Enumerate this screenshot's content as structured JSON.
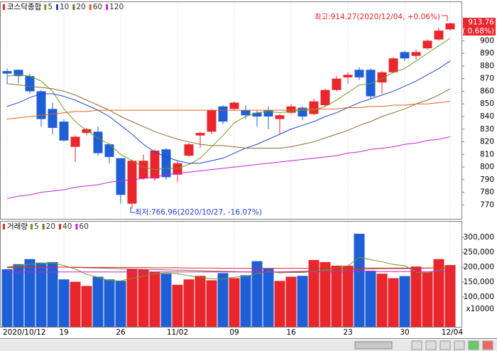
{
  "chart_data": [
    {
      "type": "candlestick",
      "title": "코스닥종합",
      "categories": [
        "2020/10/12",
        null,
        null,
        null,
        null,
        "19",
        null,
        null,
        null,
        null,
        "26",
        null,
        null,
        null,
        null,
        "11/02",
        null,
        null,
        null,
        null,
        "09",
        null,
        null,
        null,
        null,
        "16",
        null,
        null,
        null,
        null,
        "23",
        null,
        null,
        null,
        null,
        "30",
        null,
        null,
        null,
        "12/04"
      ],
      "open": [
        876,
        877,
        872,
        860,
        846,
        836,
        816,
        827,
        828,
        818,
        807,
        771,
        791,
        791,
        814,
        794,
        809,
        825,
        828,
        848,
        846,
        845,
        843,
        845,
        838,
        843,
        847,
        842,
        849,
        861,
        871,
        877,
        877,
        867,
        875,
        891,
        888,
        894,
        901,
        909
      ],
      "high": [
        878,
        877,
        874,
        861,
        851,
        838,
        825,
        831,
        832,
        819,
        807,
        806,
        810,
        814,
        815,
        805,
        819,
        828,
        846,
        849,
        852,
        849,
        845,
        848,
        842,
        850,
        848,
        854,
        862,
        872,
        875,
        879,
        878,
        876,
        887,
        892,
        893,
        901,
        910,
        914.27
      ],
      "low": [
        866,
        866,
        858,
        832,
        826,
        820,
        804,
        825,
        809,
        803,
        771,
        766.96,
        790,
        789,
        790,
        788,
        808,
        815,
        826,
        834,
        845,
        838,
        832,
        830,
        826,
        842,
        837,
        841,
        848,
        860,
        866,
        869,
        854,
        858,
        874,
        884,
        885,
        893,
        900,
        908
      ],
      "close": [
        874,
        872,
        860,
        838,
        831,
        821,
        824,
        830,
        811,
        808,
        778,
        805,
        805,
        813,
        792,
        803,
        818,
        827,
        845,
        836,
        851,
        841,
        840,
        840,
        841,
        848,
        840,
        852,
        861,
        870,
        873,
        871,
        856,
        875,
        886,
        886,
        891,
        900,
        908,
        913.76
      ],
      "up_color": "#e8262c",
      "down_color": "#1f5fd6",
      "series": [
        {
          "name": "5",
          "color": "#6e9c1f",
          "values": [
            872,
            873,
            872,
            868,
            860,
            846,
            836,
            829,
            823,
            818,
            810,
            805,
            800,
            798,
            799,
            799,
            802,
            807,
            816,
            825,
            835,
            840,
            843,
            844,
            843,
            844,
            845,
            845,
            848,
            853,
            859,
            865,
            866,
            870,
            875,
            878,
            884,
            890,
            896,
            902
          ]
        },
        {
          "name": "10",
          "color": "#1f44d6",
          "values": [
            848,
            851,
            855,
            858,
            858,
            856,
            853,
            849,
            845,
            840,
            833,
            826,
            818,
            812,
            808,
            805,
            803,
            803,
            805,
            807,
            811,
            815,
            818,
            822,
            826,
            830,
            833,
            836,
            840,
            843,
            847,
            851,
            854,
            857,
            860,
            864,
            868,
            873,
            878,
            884
          ]
        },
        {
          "name": "20",
          "color": "#8b6a2a",
          "values": [
            866,
            865,
            864,
            863,
            862,
            860,
            857,
            853,
            849,
            845,
            840,
            836,
            832,
            828,
            825,
            822,
            820,
            818,
            817,
            817,
            816,
            815,
            815,
            815,
            815,
            816,
            818,
            820,
            823,
            826,
            829,
            833,
            836,
            840,
            843,
            846,
            850,
            853,
            857,
            862
          ]
        },
        {
          "name": "60",
          "color": "#e5601c",
          "values": [
            838,
            839,
            840,
            841,
            842,
            843,
            844,
            844,
            845,
            845,
            845,
            845,
            845,
            845,
            845,
            845,
            845,
            845,
            845,
            845,
            845,
            845,
            845,
            845,
            845,
            845,
            846,
            846,
            846,
            846,
            847,
            847,
            848,
            848,
            849,
            849,
            850,
            850,
            851,
            852
          ]
        },
        {
          "name": "120",
          "color": "#c81fd6",
          "values": [
            775,
            777,
            778,
            780,
            781,
            782,
            784,
            785,
            786,
            788,
            789,
            790,
            791,
            792,
            794,
            795,
            796,
            797,
            798,
            799,
            800,
            801,
            802,
            803,
            804,
            805,
            806,
            807,
            808,
            809,
            811,
            812,
            814,
            815,
            816,
            818,
            819,
            821,
            822,
            824
          ]
        }
      ],
      "ylim": [
        759,
        930
      ],
      "yticks": [
        770,
        780,
        790,
        800,
        810,
        820,
        830,
        840,
        850,
        860,
        870,
        880,
        890,
        900
      ],
      "max_label": "최고:914.27(2020/12/04, +0.06%)",
      "min_label": "최저:766.96(2020/10/27, -16.07%)",
      "last_price_label": "913.76",
      "change_label": "( 0.68%)",
      "grid": true
    },
    {
      "type": "bar",
      "title": "거래량",
      "values": [
        193000,
        210000,
        227000,
        215000,
        217000,
        159000,
        151000,
        137000,
        168000,
        159000,
        154000,
        195000,
        193000,
        185000,
        178000,
        141000,
        159000,
        171000,
        156000,
        180000,
        163000,
        173000,
        220000,
        195000,
        154000,
        168000,
        171000,
        224000,
        217000,
        205000,
        205000,
        312000,
        188000,
        178000,
        163000,
        170000,
        202000,
        183000,
        227000,
        207000
      ],
      "series": [
        {
          "name": "5",
          "color": "#6e9c1f",
          "values": [
            200000,
            205000,
            210000,
            212000,
            214000,
            205000,
            194000,
            176000,
            166000,
            155000,
            154000,
            163000,
            170000,
            177000,
            181000,
            178000,
            171000,
            167000,
            161000,
            161000,
            166000,
            169000,
            178000,
            186000,
            181000,
            182000,
            182000,
            186000,
            191000,
            197000,
            204000,
            233000,
            225000,
            218000,
            209000,
            205000,
            183000,
            181000,
            190000,
            200000
          ]
        },
        {
          "name": "20",
          "color": "#8b6a2a",
          "values": [
            198000,
            198000,
            199000,
            199000,
            200000,
            200000,
            199000,
            198000,
            197000,
            196000,
            195000,
            194000,
            193000,
            192000,
            191000,
            190000,
            189000,
            188000,
            187000,
            186000,
            185000,
            184000,
            184000,
            184000,
            184000,
            185000,
            186000,
            187000,
            188000,
            189000,
            190000,
            193000,
            194000,
            195000,
            195000,
            195000,
            196000,
            197000,
            198000,
            199000
          ]
        },
        {
          "name": "40",
          "color": "#e8262c",
          "values": [
            200000,
            200000,
            200000,
            200000,
            200000,
            200000,
            200000,
            199000,
            199000,
            199000,
            199000,
            199000,
            199000,
            198000,
            198000,
            198000,
            197000,
            197000,
            197000,
            196000,
            196000,
            196000,
            196000,
            196000,
            196000,
            196000,
            196000,
            196000,
            196000,
            196000,
            196000,
            197000,
            197000,
            197000,
            197000,
            197000,
            197000,
            197000,
            198000,
            198000
          ]
        },
        {
          "name": "60",
          "color": "#c81fd6",
          "values": [
            184000,
            184000,
            184000,
            184000,
            184000,
            184000,
            184000,
            184000,
            184000,
            184000,
            184000,
            184000,
            184000,
            184000,
            184000,
            184000,
            184000,
            184000,
            184000,
            184000,
            184000,
            184000,
            184000,
            184000,
            184000,
            184000,
            184000,
            184000,
            184000,
            184000,
            184000,
            185000,
            185000,
            185000,
            185000,
            185000,
            185000,
            185000,
            185000,
            185000
          ]
        }
      ],
      "ylim": [
        0,
        350000
      ],
      "yticks": [
        {
          "value": 100000,
          "label": "100,000"
        },
        {
          "value": 150000,
          "label": "150,000"
        },
        {
          "value": 200000,
          "label": "200,000"
        },
        {
          "value": 250000,
          "label": "250,000"
        },
        {
          "value": 300000,
          "label": "300,000"
        }
      ],
      "unit_label": "x10000"
    }
  ]
}
